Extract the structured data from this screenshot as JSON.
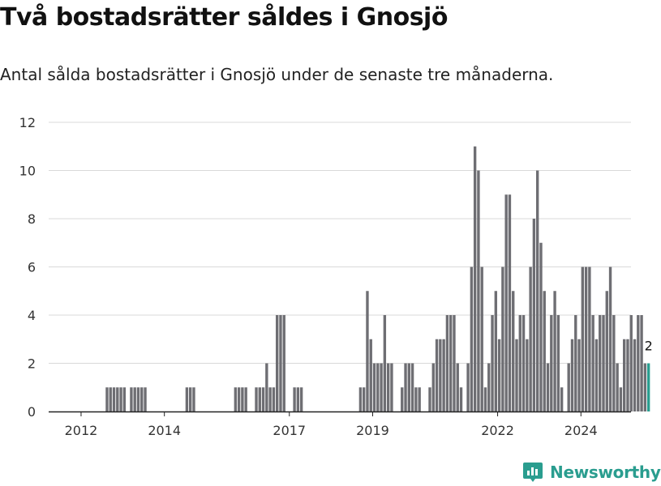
{
  "chart_data": {
    "type": "bar",
    "title": "Två bostadsrätter såldes i Gnosjö",
    "subtitle": "Antal sålda bostadsrätter i Gnosjö under de senaste tre månaderna.",
    "xlabel": "",
    "ylabel": "",
    "ylim": [
      0,
      12
    ],
    "yticks": [
      0,
      2,
      4,
      6,
      8,
      10,
      12
    ],
    "xticks": [
      "2012",
      "2014",
      "2017",
      "2019",
      "2022",
      "2024"
    ],
    "grid": true,
    "bar_color": "#6e6e73",
    "highlight_color": "#2a9d8f",
    "highlight_label": "2",
    "start_month": "2011-06",
    "values": [
      0,
      0,
      0,
      0,
      0,
      0,
      0,
      0,
      0,
      0,
      0,
      0,
      0,
      0,
      1,
      1,
      1,
      1,
      1,
      1,
      0,
      1,
      1,
      1,
      1,
      1,
      0,
      0,
      0,
      0,
      0,
      0,
      0,
      0,
      0,
      0,
      0,
      1,
      1,
      1,
      0,
      0,
      0,
      0,
      0,
      0,
      0,
      0,
      0,
      0,
      0,
      1,
      1,
      1,
      1,
      0,
      0,
      1,
      1,
      1,
      2,
      1,
      1,
      4,
      4,
      4,
      0,
      0,
      1,
      1,
      1,
      0,
      0,
      0,
      0,
      0,
      0,
      0,
      0,
      0,
      0,
      0,
      0,
      0,
      0,
      0,
      0,
      1,
      1,
      5,
      3,
      2,
      2,
      2,
      4,
      2,
      2,
      0,
      0,
      1,
      2,
      2,
      2,
      1,
      1,
      0,
      0,
      1,
      2,
      3,
      3,
      3,
      4,
      4,
      4,
      2,
      1,
      0,
      2,
      6,
      11,
      10,
      6,
      1,
      2,
      4,
      5,
      3,
      6,
      9,
      9,
      5,
      3,
      4,
      4,
      3,
      6,
      8,
      10,
      7,
      5,
      2,
      4,
      5,
      4,
      1,
      0,
      2,
      3,
      4,
      3,
      6,
      6,
      6,
      4,
      3,
      4,
      4,
      5,
      6,
      4,
      2,
      1,
      3,
      3,
      4,
      3,
      4,
      4,
      2,
      2
    ]
  },
  "brand": {
    "name": "Newsworthy",
    "logo_icon": "newsworthy-logo-icon",
    "color": "#2a9d8f"
  }
}
